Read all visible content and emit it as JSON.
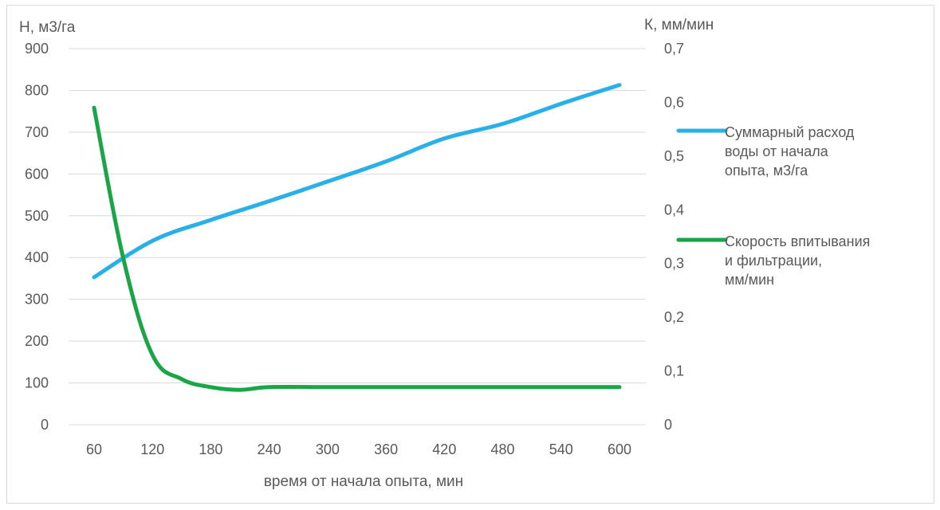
{
  "chart_data": {
    "type": "line",
    "x_title": "время от начала опыта, мин",
    "y_left_title": "Н, м3/га",
    "y_right_title": "К, мм/мин",
    "x": [
      60,
      120,
      180,
      240,
      300,
      360,
      420,
      480,
      540,
      600
    ],
    "x_tick_labels": [
      "60",
      "120",
      "180",
      "240",
      "300",
      "360",
      "420",
      "480",
      "540",
      "600"
    ],
    "y_left_range": [
      0,
      900
    ],
    "y_left_tick_labels": [
      "0",
      "100",
      "200",
      "300",
      "400",
      "500",
      "600",
      "700",
      "800",
      "900"
    ],
    "y_right_range": [
      0,
      0.7
    ],
    "y_right_tick_labels": [
      "0",
      "0,1",
      "0,2",
      "0,3",
      "0,4",
      "0,5",
      "0,6",
      "0,7"
    ],
    "grid": "horizontal",
    "legend_position": "right",
    "series": [
      {
        "name": "Суммарный расход воды от начала опыта, м3/га",
        "legend_lines": [
          "Суммарный расход",
          "воды от начала",
          "опыта, м3/га"
        ],
        "axis": "left",
        "color": "#29B0E8",
        "x": [
          60,
          120,
          180,
          240,
          300,
          360,
          420,
          480,
          540,
          600
        ],
        "values": [
          353,
          440,
          490,
          535,
          582,
          630,
          685,
          720,
          768,
          813
        ]
      },
      {
        "name": "Скорость впитывания и фильтрации, мм/мин",
        "legend_lines": [
          "Скорость впитывания",
          "и фильтрации,",
          "мм/мин"
        ],
        "axis": "right",
        "color": "#1BA548",
        "x": [
          60,
          90,
          120,
          150,
          180,
          210,
          240,
          300,
          360,
          420,
          480,
          540,
          600
        ],
        "values": [
          0.59,
          0.31,
          0.13,
          0.085,
          0.07,
          0.065,
          0.07,
          0.07,
          0.07,
          0.07,
          0.07,
          0.07,
          0.07
        ]
      }
    ]
  }
}
